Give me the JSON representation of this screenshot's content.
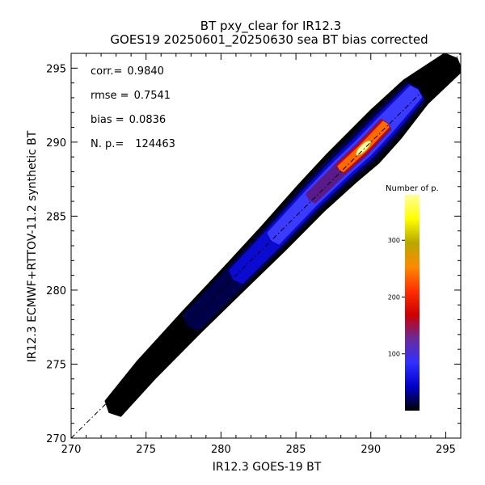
{
  "chart_data": {
    "type": "heatmap",
    "title": "BT pxy_clear for IR12.3",
    "subtitle": "GOES19 20250601_20250630 sea BT bias corrected",
    "xlabel": "IR12.3 GOES-19 BT",
    "ylabel": "IR12.3 ECMWF+RTTOV-11.2 synthetic BT",
    "xlim": [
      270,
      296
    ],
    "ylim": [
      270,
      296
    ],
    "x_ticks": [
      "270",
      "275",
      "280",
      "285",
      "290",
      "295"
    ],
    "y_ticks": [
      "270",
      "275",
      "280",
      "285",
      "290",
      "295"
    ],
    "stats": [
      {
        "label": "corr.=",
        "value": "0.9840"
      },
      {
        "label": "rmse =",
        "value": "0.7541"
      },
      {
        "label": "bias =",
        "value": "0.0836"
      },
      {
        "label": "N. p.=",
        "value": "124463"
      }
    ],
    "colorbar": {
      "title": "Number of p.",
      "range": [
        0,
        380
      ],
      "ticks": [
        "100",
        "200",
        "300"
      ],
      "tick_values": [
        100,
        200,
        300
      ],
      "colors": [
        "#000000",
        "#0000c8",
        "#3030ff",
        "#6a2a9a",
        "#cc0000",
        "#ff3000",
        "#ff8a00",
        "#b8a800",
        "#ffff00",
        "#ffff99"
      ]
    },
    "reference_line": {
      "style": "dash-dot",
      "from": [
        270,
        270
      ],
      "to": [
        296,
        296
      ]
    },
    "density_cloud": [
      {
        "x": 272.8,
        "y": 272.0,
        "count": 2
      },
      {
        "x": 275,
        "y": 274.6,
        "count": 5
      },
      {
        "x": 278,
        "y": 277.8,
        "count": 10
      },
      {
        "x": 281,
        "y": 280.9,
        "count": 20
      },
      {
        "x": 283.5,
        "y": 283.5,
        "count": 40
      },
      {
        "x": 286,
        "y": 286.2,
        "count": 80
      },
      {
        "x": 288,
        "y": 288.2,
        "count": 180
      },
      {
        "x": 289.5,
        "y": 289.6,
        "count": 320
      },
      {
        "x": 291,
        "y": 291.2,
        "count": 220
      },
      {
        "x": 293,
        "y": 293.4,
        "count": 40
      },
      {
        "x": 295.5,
        "y": 295.4,
        "count": 5
      }
    ]
  }
}
